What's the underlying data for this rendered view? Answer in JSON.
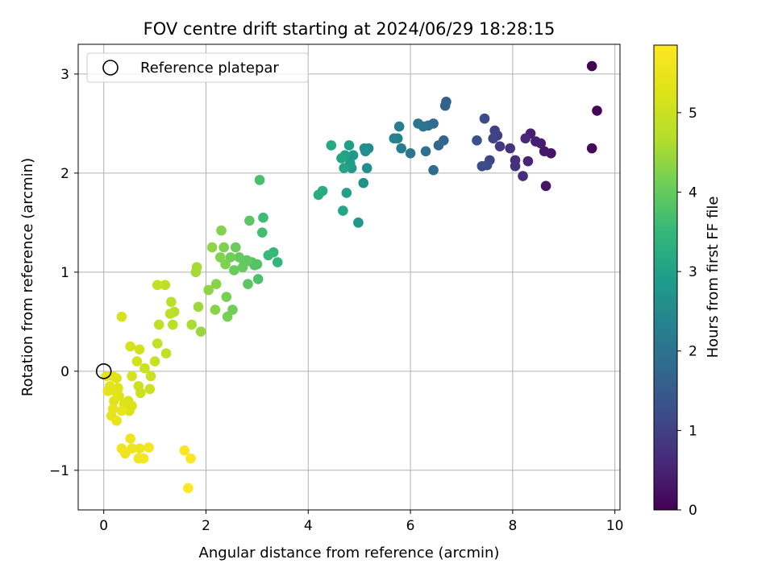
{
  "chart_data": {
    "type": "scatter",
    "title": "FOV centre drift starting at 2024/06/29 18:28:15",
    "xlabel": "Angular distance from reference (arcmin)",
    "ylabel": "Rotation from reference (arcmin)",
    "xlim": [
      -0.5,
      10.1
    ],
    "ylim": [
      -1.4,
      3.3
    ],
    "x_ticks": [
      0,
      2,
      4,
      6,
      8,
      10
    ],
    "y_ticks": [
      -1,
      0,
      1,
      2,
      3
    ],
    "x_tick_labels": [
      "0",
      "2",
      "4",
      "6",
      "8",
      "10"
    ],
    "y_tick_labels": [
      "−1",
      "0",
      "1",
      "2",
      "3"
    ],
    "grid": true,
    "legend": {
      "placement": "top-left",
      "entries": [
        "Reference platepar"
      ]
    },
    "reference_point": {
      "x": 0,
      "y": 0
    },
    "colorbar": {
      "label": "Hours from first FF file",
      "colormap": "viridis",
      "range": [
        0,
        5.85
      ],
      "ticks": [
        0,
        1,
        2,
        3,
        4,
        5
      ],
      "tick_labels": [
        "0",
        "1",
        "2",
        "3",
        "4",
        "5"
      ]
    },
    "series": [
      {
        "points": [
          [
            9.55,
            3.08,
            0.0
          ],
          [
            9.65,
            2.63,
            0.05
          ],
          [
            9.55,
            2.25,
            0.1
          ],
          [
            8.75,
            2.2,
            0.25
          ],
          [
            8.65,
            1.87,
            0.3
          ],
          [
            8.62,
            2.22,
            0.35
          ],
          [
            8.55,
            2.3,
            0.4
          ],
          [
            8.45,
            2.32,
            0.45
          ],
          [
            8.35,
            2.4,
            0.5
          ],
          [
            8.3,
            2.12,
            0.55
          ],
          [
            8.25,
            2.35,
            0.6
          ],
          [
            8.2,
            1.97,
            0.65
          ],
          [
            8.05,
            2.13,
            0.7
          ],
          [
            8.05,
            2.07,
            0.75
          ],
          [
            7.95,
            2.25,
            0.8
          ],
          [
            7.75,
            2.27,
            0.9
          ],
          [
            7.7,
            2.38,
            0.95
          ],
          [
            7.65,
            2.43,
            1.0
          ],
          [
            7.62,
            2.35,
            1.05
          ],
          [
            7.55,
            2.13,
            1.1
          ],
          [
            7.5,
            2.08,
            1.15
          ],
          [
            7.45,
            2.55,
            1.2
          ],
          [
            7.4,
            2.07,
            1.25
          ],
          [
            7.3,
            2.33,
            1.3
          ],
          [
            6.7,
            2.72,
            1.6
          ],
          [
            6.68,
            2.68,
            1.65
          ],
          [
            6.65,
            2.33,
            1.7
          ],
          [
            6.55,
            2.28,
            1.75
          ],
          [
            6.45,
            2.5,
            1.8
          ],
          [
            6.45,
            2.03,
            1.85
          ],
          [
            6.35,
            2.48,
            1.9
          ],
          [
            6.3,
            2.22,
            1.95
          ],
          [
            6.25,
            2.47,
            2.0
          ],
          [
            6.15,
            2.5,
            2.05
          ],
          [
            6.0,
            2.2,
            2.1
          ],
          [
            5.82,
            2.25,
            2.2
          ],
          [
            5.78,
            2.47,
            2.25
          ],
          [
            5.75,
            2.35,
            2.3
          ],
          [
            5.68,
            2.35,
            2.35
          ],
          [
            5.18,
            2.25,
            2.5
          ],
          [
            5.15,
            2.05,
            2.55
          ],
          [
            5.12,
            2.22,
            2.6
          ],
          [
            5.1,
            2.25,
            2.65
          ],
          [
            5.08,
            1.9,
            2.7
          ],
          [
            4.98,
            1.5,
            2.75
          ],
          [
            4.88,
            2.18,
            2.8
          ],
          [
            4.85,
            2.05,
            2.85
          ],
          [
            4.82,
            2.1,
            2.9
          ],
          [
            4.8,
            2.28,
            2.95
          ],
          [
            4.75,
            1.8,
            3.0
          ],
          [
            4.72,
            2.18,
            3.0
          ],
          [
            4.7,
            2.05,
            3.05
          ],
          [
            4.68,
            1.62,
            3.1
          ],
          [
            4.65,
            2.15,
            3.1
          ],
          [
            4.45,
            2.28,
            3.15
          ],
          [
            4.28,
            1.82,
            3.2
          ],
          [
            4.2,
            1.78,
            3.25
          ],
          [
            3.4,
            1.1,
            3.45
          ],
          [
            3.32,
            1.2,
            3.5
          ],
          [
            3.22,
            1.17,
            3.55
          ],
          [
            3.12,
            1.55,
            3.6
          ],
          [
            3.1,
            1.4,
            3.65
          ],
          [
            3.05,
            1.93,
            3.7
          ],
          [
            3.02,
            0.93,
            3.75
          ],
          [
            3.0,
            1.08,
            3.8
          ],
          [
            2.95,
            1.07,
            3.85
          ],
          [
            2.9,
            1.1,
            3.85
          ],
          [
            2.85,
            1.52,
            3.9
          ],
          [
            2.82,
            0.88,
            3.9
          ],
          [
            2.8,
            1.12,
            3.95
          ],
          [
            2.75,
            1.1,
            3.95
          ],
          [
            2.72,
            1.05,
            4.0
          ],
          [
            2.65,
            1.15,
            4.0
          ],
          [
            2.58,
            1.25,
            4.05
          ],
          [
            2.55,
            1.02,
            4.05
          ],
          [
            2.52,
            0.62,
            4.1
          ],
          [
            2.48,
            1.15,
            4.1
          ],
          [
            2.42,
            0.55,
            4.15
          ],
          [
            2.4,
            0.75,
            4.15
          ],
          [
            2.38,
            1.08,
            4.2
          ],
          [
            2.35,
            1.25,
            4.2
          ],
          [
            2.3,
            1.42,
            4.25
          ],
          [
            2.28,
            1.15,
            4.25
          ],
          [
            2.2,
            0.88,
            4.3
          ],
          [
            2.18,
            0.62,
            4.3
          ],
          [
            2.12,
            1.25,
            4.35
          ],
          [
            2.05,
            0.82,
            4.35
          ],
          [
            1.9,
            0.4,
            4.45
          ],
          [
            1.85,
            0.65,
            4.5
          ],
          [
            1.82,
            1.05,
            4.55
          ],
          [
            1.8,
            1.0,
            4.55
          ],
          [
            1.72,
            0.47,
            4.6
          ],
          [
            1.38,
            0.6,
            4.7
          ],
          [
            1.35,
            0.47,
            4.75
          ],
          [
            1.32,
            0.7,
            4.75
          ],
          [
            1.3,
            0.58,
            4.8
          ],
          [
            1.2,
            0.87,
            4.8
          ],
          [
            1.22,
            0.18,
            4.85
          ],
          [
            1.08,
            0.47,
            4.85
          ],
          [
            1.05,
            0.28,
            4.9
          ],
          [
            1.05,
            0.87,
            4.9
          ],
          [
            1.0,
            0.1,
            4.95
          ],
          [
            0.92,
            -0.05,
            5.0
          ],
          [
            0.9,
            -0.18,
            5.0
          ],
          [
            0.8,
            0.03,
            5.05
          ],
          [
            0.72,
            -0.22,
            5.05
          ],
          [
            0.68,
            -0.15,
            5.05
          ],
          [
            0.7,
            0.22,
            5.1
          ],
          [
            0.65,
            0.1,
            5.1
          ],
          [
            0.55,
            -0.05,
            5.15
          ],
          [
            0.52,
            0.25,
            5.15
          ],
          [
            0.35,
            0.55,
            5.15
          ],
          [
            0.55,
            -0.35,
            5.2
          ],
          [
            0.48,
            -0.3,
            5.2
          ],
          [
            0.5,
            -0.4,
            5.25
          ],
          [
            0.4,
            -0.33,
            5.25
          ],
          [
            0.3,
            -0.25,
            5.3
          ],
          [
            0.28,
            -0.17,
            5.3
          ],
          [
            0.25,
            -0.07,
            5.3
          ],
          [
            0.22,
            -0.2,
            5.35
          ],
          [
            0.18,
            -0.05,
            5.35
          ],
          [
            0.2,
            -0.3,
            5.35
          ],
          [
            0.15,
            -0.45,
            5.4
          ],
          [
            0.12,
            -0.15,
            5.4
          ],
          [
            0.08,
            -0.2,
            5.4
          ],
          [
            0.05,
            -0.05,
            5.45
          ],
          [
            0.18,
            -0.38,
            5.45
          ],
          [
            0.25,
            -0.5,
            5.45
          ],
          [
            0.35,
            -0.4,
            5.5
          ],
          [
            0.52,
            -0.68,
            5.55
          ],
          [
            0.35,
            -0.78,
            5.55
          ],
          [
            0.55,
            -0.78,
            5.6
          ],
          [
            0.42,
            -0.83,
            5.6
          ],
          [
            0.7,
            -0.78,
            5.6
          ],
          [
            0.68,
            -0.88,
            5.65
          ],
          [
            0.78,
            -0.88,
            5.65
          ],
          [
            0.88,
            -0.77,
            5.7
          ],
          [
            1.58,
            -0.8,
            5.75
          ],
          [
            1.7,
            -0.88,
            5.8
          ],
          [
            1.65,
            -1.18,
            5.85
          ]
        ]
      }
    ]
  }
}
